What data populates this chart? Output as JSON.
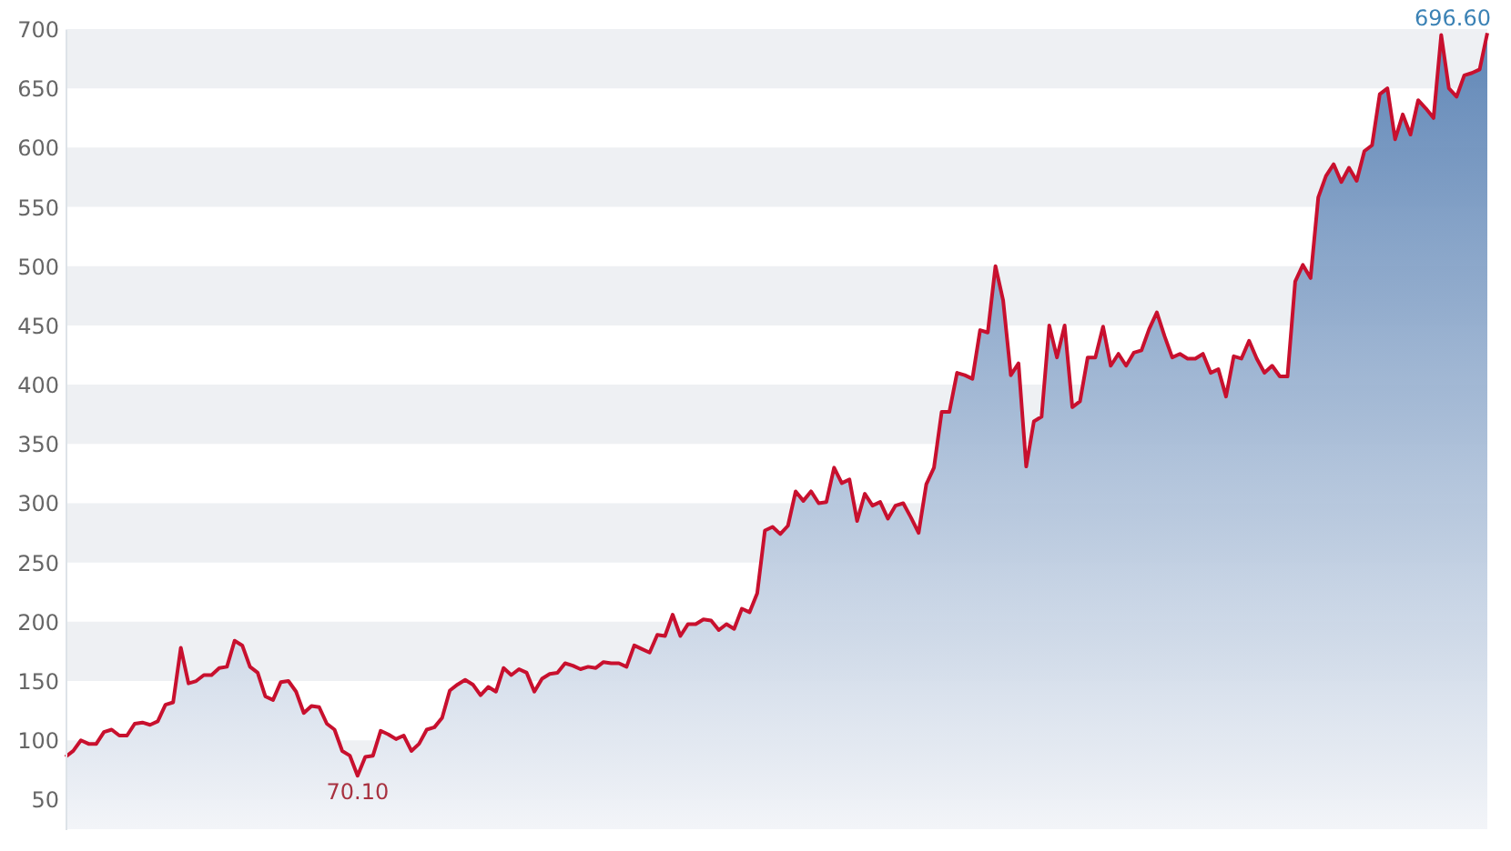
{
  "chart_data": {
    "type": "area",
    "categories": [
      null,
      null,
      null,
      null,
      null,
      null,
      null,
      null,
      null,
      null,
      null,
      null,
      null,
      null,
      null,
      null,
      null,
      null,
      null,
      null,
      null,
      null,
      null,
      null,
      null,
      null,
      null,
      null,
      null,
      null,
      null,
      null,
      null,
      null,
      null,
      null,
      null,
      null,
      null,
      null,
      null,
      null,
      null,
      null,
      null,
      null,
      null,
      null,
      null,
      null,
      null,
      null,
      null,
      null,
      null,
      null,
      null,
      null,
      null,
      null,
      null,
      null,
      null,
      null,
      null,
      null,
      null,
      null,
      null,
      null,
      null,
      null,
      null,
      null,
      null,
      null,
      null,
      null,
      null,
      null,
      null,
      null,
      null,
      null,
      null,
      null,
      null,
      null,
      null,
      null,
      null,
      null,
      null,
      null,
      null,
      null,
      null,
      null,
      null,
      null,
      null,
      null,
      null,
      null,
      null,
      null,
      null,
      null,
      null,
      null,
      null,
      null,
      null,
      null,
      null,
      null,
      null,
      null,
      null,
      null,
      null,
      null,
      null,
      null,
      null,
      null,
      null,
      null,
      null,
      null,
      null,
      null,
      null,
      null,
      null,
      null,
      null,
      null,
      null,
      null,
      null,
      null,
      null,
      null,
      null,
      null,
      null,
      null,
      null,
      null,
      null,
      null,
      null,
      null,
      null,
      null,
      null,
      null,
      null,
      null,
      null,
      null,
      null,
      null,
      null,
      null,
      null,
      null,
      null,
      null,
      null,
      null,
      null,
      null,
      null,
      null,
      null,
      null,
      null,
      null,
      null,
      null,
      null,
      null,
      null,
      null
    ],
    "series": [
      {
        "color": "#c8102e",
        "values": [
          86,
          91,
          100,
          97,
          97,
          107,
          109,
          104,
          104,
          114,
          115,
          113,
          116,
          130,
          132,
          178,
          148,
          150,
          155,
          155,
          161,
          162,
          184,
          180,
          162,
          157,
          137,
          134,
          149,
          150,
          141,
          123,
          129,
          128,
          114,
          109,
          91,
          87,
          70.1,
          86,
          87,
          108,
          105,
          101,
          104,
          91,
          97,
          109,
          111,
          119,
          142,
          147,
          151,
          147,
          138,
          145,
          141,
          161,
          155,
          160,
          157,
          141,
          152,
          156,
          157,
          165,
          163,
          160,
          162,
          161,
          166,
          165,
          165,
          162,
          180,
          177,
          174,
          189,
          188,
          206,
          188,
          198,
          198,
          202,
          201,
          193,
          198,
          194,
          211,
          208,
          224,
          277,
          280,
          274,
          281,
          310,
          302,
          310,
          300,
          301,
          330,
          317,
          320,
          285,
          308,
          298,
          301,
          287,
          298,
          300,
          288,
          275,
          316,
          330,
          377,
          377,
          410,
          408,
          405,
          446,
          444,
          500,
          471,
          408,
          418,
          331,
          369,
          373,
          450,
          423,
          450,
          381,
          386,
          423,
          423,
          449,
          416,
          426,
          416,
          427,
          429,
          447,
          461,
          441,
          423,
          426,
          422,
          422,
          426,
          410,
          413,
          390,
          424,
          422,
          437,
          422,
          410,
          416,
          407,
          407,
          487,
          501,
          490,
          558,
          576,
          586,
          571,
          583,
          572,
          597,
          602,
          645,
          650,
          607,
          628,
          611,
          640,
          633,
          625,
          695,
          650,
          643,
          661,
          663,
          666,
          696.6
        ]
      }
    ],
    "ylim": [
      25,
      700
    ],
    "yticks": [
      50,
      100,
      150,
      200,
      250,
      300,
      350,
      400,
      450,
      500,
      550,
      600,
      650,
      700
    ],
    "bands": [
      {
        "axis": "y",
        "from": 50,
        "to": 100,
        "color": "#eef0f3"
      },
      {
        "axis": "y",
        "from": 150,
        "to": 200,
        "color": "#eef0f3"
      },
      {
        "axis": "y",
        "from": 250,
        "to": 300,
        "color": "#eef0f3"
      },
      {
        "axis": "y",
        "from": 350,
        "to": 400,
        "color": "#eef0f3"
      },
      {
        "axis": "y",
        "from": 450,
        "to": 500,
        "color": "#eef0f3"
      },
      {
        "axis": "y",
        "from": 550,
        "to": 600,
        "color": "#eef0f3"
      },
      {
        "axis": "y",
        "from": 650,
        "to": 700,
        "color": "#eef0f3"
      }
    ],
    "tick_labels": "y",
    "annotations": [
      {
        "text": "70.10",
        "y": 70.1
      },
      {
        "text": "696.60",
        "y": 696.6
      }
    ]
  }
}
